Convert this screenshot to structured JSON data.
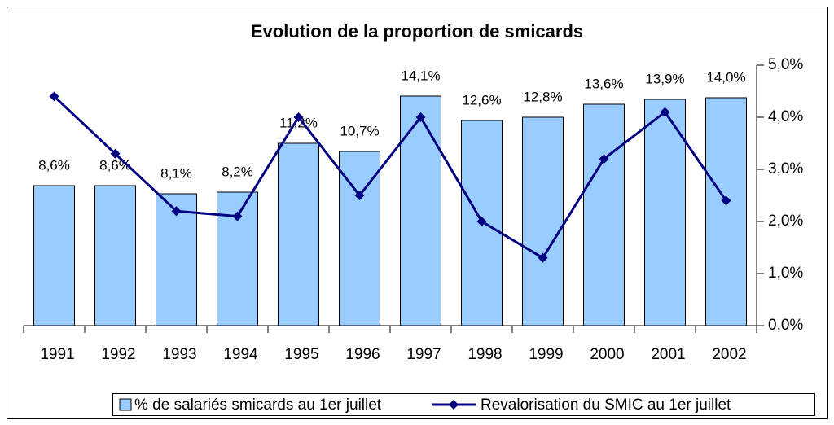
{
  "chart_data": {
    "type": "bar",
    "title": "Evolution de la proportion de smicards",
    "categories": [
      "1991",
      "1992",
      "1993",
      "1994",
      "1995",
      "1996",
      "1997",
      "1998",
      "1999",
      "2000",
      "2001",
      "2002"
    ],
    "series": [
      {
        "name": "% de salariés smicards au 1er juillet",
        "type": "bar",
        "color": "#99ccff",
        "values": [
          8.6,
          8.6,
          8.1,
          8.2,
          11.2,
          10.7,
          14.1,
          12.6,
          12.8,
          13.6,
          13.9,
          14.0
        ],
        "value_labels": [
          "8,6%",
          "8,6%",
          "8,1%",
          "8,2%",
          "11,2%",
          "10,7%",
          "14,1%",
          "12,6%",
          "12,8%",
          "13,6%",
          "13,9%",
          "14,0%"
        ]
      },
      {
        "name": "Revalorisation du SMIC au 1er juillet",
        "type": "line",
        "axis": "y2",
        "color": "#000080",
        "values": [
          4.4,
          3.3,
          2.2,
          2.1,
          4.0,
          2.5,
          4.0,
          2.0,
          1.3,
          3.2,
          4.1,
          2.4
        ]
      }
    ],
    "ylim": [
      0,
      16
    ],
    "y2lim": [
      0,
      5
    ],
    "y2ticks": [
      {
        "value": 0,
        "label": "0,0%"
      },
      {
        "value": 1,
        "label": "1,0%"
      },
      {
        "value": 2,
        "label": "2,0%"
      },
      {
        "value": 3,
        "label": "3,0%"
      },
      {
        "value": 4,
        "label": "4,0%"
      },
      {
        "value": 5,
        "label": "5,0%"
      }
    ],
    "legend": "bottom"
  }
}
